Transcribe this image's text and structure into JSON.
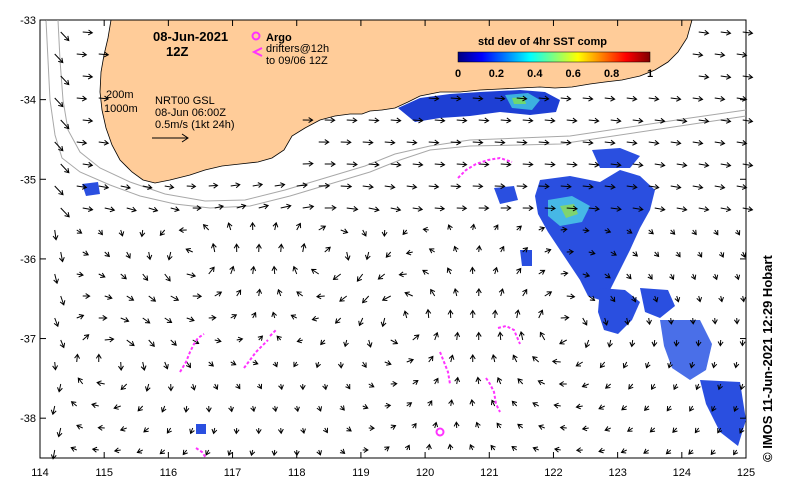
{
  "title": {
    "date": "08-Jun-2021",
    "hour": "12Z"
  },
  "legend": {
    "argo_label": "Argo",
    "drifters_line1": "drifters@12h",
    "drifters_line2": "to 09/06 12Z",
    "depth_200": "200m",
    "depth_1000": "1000m",
    "product": "NRT00 GSL",
    "analysis_time": "08-Jun 06:00Z",
    "scale_label": "0.5m/s (1kt 24h)",
    "argo_color": "#ff33ff",
    "drifter_color": "#ff33ff"
  },
  "colorbar": {
    "title": "std dev of 4hr SST comp",
    "ticks": [
      "0",
      "0.2",
      "0.4",
      "0.6",
      "0.8",
      "1"
    ],
    "colors": [
      "#00007f",
      "#0000ff",
      "#007fff",
      "#00ffff",
      "#7fff7f",
      "#ffff00",
      "#ff7f00",
      "#ff0000",
      "#7f0000"
    ]
  },
  "axes": {
    "x_ticks": [
      "114",
      "115",
      "116",
      "117",
      "118",
      "119",
      "120",
      "121",
      "122",
      "123",
      "124",
      "125"
    ],
    "y_ticks": [
      "-33",
      "-34",
      "-35",
      "-36",
      "-37",
      "-38"
    ],
    "lon_range": [
      114,
      125
    ],
    "lat_range": [
      -38.5,
      -33
    ]
  },
  "colors": {
    "land": "#ffcc99",
    "ocean": "#ffffff",
    "isobath": "#a8a8a8",
    "arrow": "#000000"
  },
  "credit": "© IMOS 11-Jun-2021 12:29 Hobart"
}
